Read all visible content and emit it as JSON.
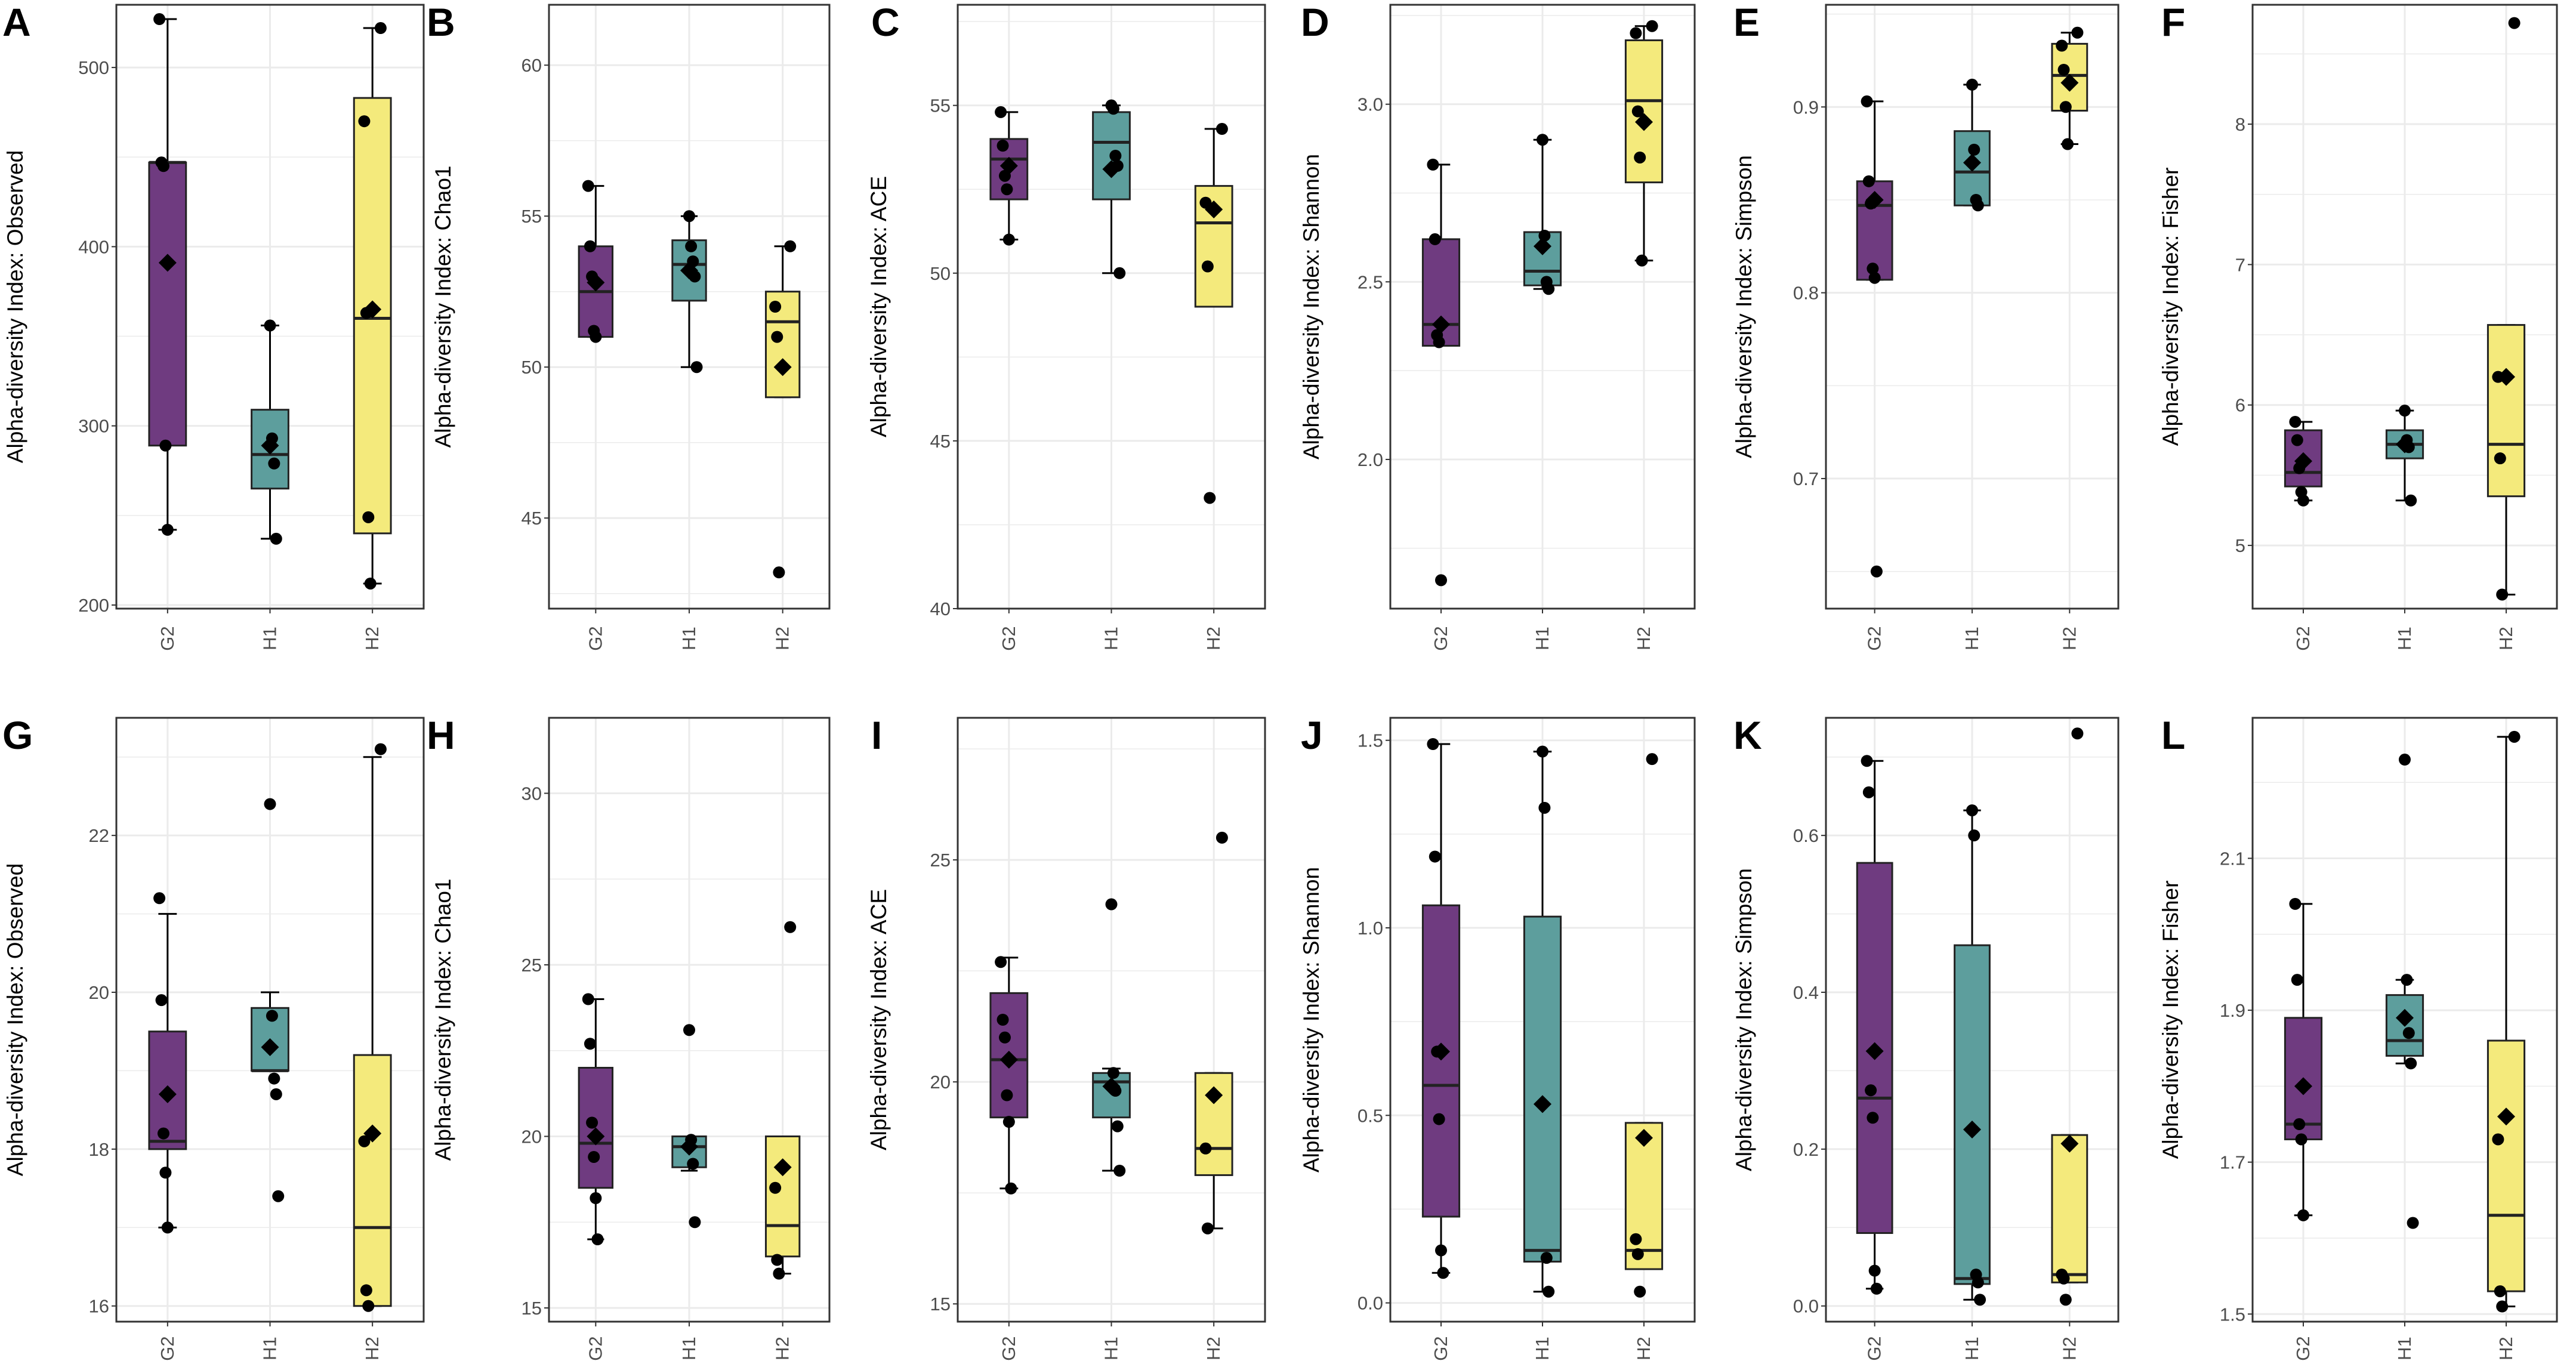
{
  "colors": {
    "G2": "#6f3b80",
    "H1": "#5d9e9d",
    "H2": "#f4ea7c",
    "grid": "#ebebeb",
    "panel_border": "#333333",
    "points": "#000000"
  },
  "chart_data": [
    {
      "panel": "A",
      "type": "box",
      "ylabel": "Alpha-diversity Index: Observed",
      "categories": [
        "G2",
        "H1",
        "H2"
      ],
      "ylim": [
        198,
        535
      ],
      "yticks": [
        200,
        300,
        400,
        500
      ],
      "boxes": [
        {
          "group": "G2",
          "q1": 289,
          "median": 447,
          "q3": 447,
          "whisker_low": 242,
          "whisker_high": 527,
          "mean": 391,
          "points": [
            527,
            447,
            445,
            289,
            242
          ]
        },
        {
          "group": "H1",
          "q1": 265,
          "median": 284,
          "q3": 309,
          "whisker_low": 237,
          "whisker_high": 356,
          "mean": 289,
          "points": [
            356,
            293,
            279,
            237
          ]
        },
        {
          "group": "H2",
          "q1": 240,
          "median": 360,
          "q3": 483,
          "whisker_low": 212,
          "whisker_high": 522,
          "mean": 365,
          "points": [
            522,
            470,
            363,
            249,
            212
          ]
        }
      ]
    },
    {
      "panel": "B",
      "type": "box",
      "ylabel": "Alpha-diversity Index: Chao1",
      "categories": [
        "G2",
        "H1",
        "H2"
      ],
      "ylim": [
        42,
        62
      ],
      "yticks": [
        45,
        50,
        55,
        60
      ],
      "boxes": [
        {
          "group": "G2",
          "q1": 51,
          "median": 52.5,
          "q3": 54,
          "whisker_low": 51,
          "whisker_high": 56,
          "mean": 52.8,
          "points": [
            56,
            54,
            53,
            51.2,
            51
          ]
        },
        {
          "group": "H1",
          "q1": 52.2,
          "median": 53.4,
          "q3": 54.2,
          "whisker_low": 50,
          "whisker_high": 55,
          "mean": 53.2,
          "points": [
            55,
            54,
            53.5,
            53,
            50
          ]
        },
        {
          "group": "H2",
          "q1": 49,
          "median": 51.5,
          "q3": 52.5,
          "whisker_low": 49,
          "whisker_high": 54,
          "mean": 50,
          "points": [
            54,
            52,
            51,
            43.2
          ]
        }
      ]
    },
    {
      "panel": "C",
      "type": "box",
      "ylabel": "Alpha-diversity Index: ACE",
      "categories": [
        "G2",
        "H1",
        "H2"
      ],
      "ylim": [
        40,
        58
      ],
      "yticks": [
        40,
        45,
        50,
        55
      ],
      "boxes": [
        {
          "group": "G2",
          "q1": 52.2,
          "median": 53.4,
          "q3": 54,
          "whisker_low": 51,
          "whisker_high": 54.8,
          "mean": 53.2,
          "points": [
            54.8,
            53.8,
            52.9,
            52.5,
            51
          ]
        },
        {
          "group": "H1",
          "q1": 52.2,
          "median": 53.9,
          "q3": 54.8,
          "whisker_low": 50,
          "whisker_high": 55,
          "mean": 53.1,
          "points": [
            55,
            54.9,
            53.5,
            53.2,
            50
          ]
        },
        {
          "group": "H2",
          "q1": 49,
          "median": 51.5,
          "q3": 52.6,
          "whisker_low": 49,
          "whisker_high": 54.3,
          "mean": 51.9,
          "points": [
            54.3,
            52.1,
            50.2,
            43.3
          ]
        }
      ]
    },
    {
      "panel": "D",
      "type": "box",
      "ylabel": "Alpha-diversity Index: Shannon",
      "categories": [
        "G2",
        "H1",
        "H2"
      ],
      "ylim": [
        1.58,
        3.28
      ],
      "yticks": [
        2.0,
        2.5,
        3.0
      ],
      "ytick_labels": [
        "2.0",
        "2.5",
        "3.0"
      ],
      "boxes": [
        {
          "group": "G2",
          "q1": 2.32,
          "median": 2.38,
          "q3": 2.62,
          "whisker_low": 2.32,
          "whisker_high": 2.83,
          "mean": 2.38,
          "points": [
            2.83,
            2.62,
            2.35,
            2.33,
            1.66
          ]
        },
        {
          "group": "H1",
          "q1": 2.49,
          "median": 2.53,
          "q3": 2.64,
          "whisker_low": 2.48,
          "whisker_high": 2.9,
          "mean": 2.6,
          "points": [
            2.9,
            2.63,
            2.5,
            2.48
          ]
        },
        {
          "group": "H2",
          "q1": 2.78,
          "median": 3.01,
          "q3": 3.18,
          "whisker_low": 2.56,
          "whisker_high": 3.22,
          "mean": 2.95,
          "points": [
            3.22,
            3.2,
            2.98,
            2.85,
            2.56
          ]
        }
      ]
    },
    {
      "panel": "E",
      "type": "box",
      "ylabel": "Alpha-diversity Index: Simpson",
      "categories": [
        "G2",
        "H1",
        "H2"
      ],
      "ylim": [
        0.63,
        0.955
      ],
      "yticks": [
        0.7,
        0.8,
        0.9
      ],
      "ytick_labels": [
        "0.7",
        "0.8",
        "0.9"
      ],
      "boxes": [
        {
          "group": "G2",
          "q1": 0.807,
          "median": 0.847,
          "q3": 0.86,
          "whisker_low": 0.807,
          "whisker_high": 0.903,
          "mean": 0.85,
          "points": [
            0.903,
            0.86,
            0.848,
            0.813,
            0.808,
            0.65
          ]
        },
        {
          "group": "H1",
          "q1": 0.847,
          "median": 0.865,
          "q3": 0.887,
          "whisker_low": 0.847,
          "whisker_high": 0.912,
          "mean": 0.87,
          "points": [
            0.912,
            0.877,
            0.85,
            0.847
          ]
        },
        {
          "group": "H2",
          "q1": 0.898,
          "median": 0.917,
          "q3": 0.934,
          "whisker_low": 0.88,
          "whisker_high": 0.94,
          "mean": 0.913,
          "points": [
            0.94,
            0.933,
            0.92,
            0.9,
            0.88
          ]
        }
      ]
    },
    {
      "panel": "F",
      "type": "box",
      "ylabel": "Alpha-diversity Index: Fisher",
      "categories": [
        "G2",
        "H1",
        "H2"
      ],
      "ylim": [
        4.55,
        8.85
      ],
      "yticks": [
        5,
        6,
        7,
        8
      ],
      "boxes": [
        {
          "group": "G2",
          "q1": 5.42,
          "median": 5.52,
          "q3": 5.82,
          "whisker_low": 5.32,
          "whisker_high": 5.88,
          "mean": 5.6,
          "points": [
            5.88,
            5.75,
            5.55,
            5.38,
            5.32
          ]
        },
        {
          "group": "H1",
          "q1": 5.62,
          "median": 5.72,
          "q3": 5.82,
          "whisker_low": 5.32,
          "whisker_high": 5.96,
          "mean": 5.72,
          "points": [
            5.96,
            5.75,
            5.7,
            5.32
          ]
        },
        {
          "group": "H2",
          "q1": 5.35,
          "median": 5.72,
          "q3": 6.57,
          "whisker_low": 4.65,
          "whisker_high": 6.57,
          "mean": 6.2,
          "points": [
            8.72,
            6.2,
            5.62,
            4.65
          ]
        }
      ]
    },
    {
      "panel": "G",
      "type": "box",
      "ylabel": "Alpha-diversity Index: Observed",
      "categories": [
        "G2",
        "H1",
        "H2"
      ],
      "ylim": [
        15.8,
        23.5
      ],
      "yticks": [
        16,
        18,
        20,
        22
      ],
      "boxes": [
        {
          "group": "G2",
          "q1": 18,
          "median": 18.1,
          "q3": 19.5,
          "whisker_low": 17,
          "whisker_high": 21,
          "mean": 18.7,
          "points": [
            21.2,
            19.9,
            18.2,
            17.7,
            17
          ]
        },
        {
          "group": "H1",
          "q1": 19,
          "median": 19,
          "q3": 19.8,
          "whisker_low": 19,
          "whisker_high": 20,
          "mean": 19.3,
          "points": [
            22.4,
            19.7,
            18.9,
            18.7,
            17.4
          ]
        },
        {
          "group": "H2",
          "q1": 16,
          "median": 17,
          "q3": 19.2,
          "whisker_low": 16,
          "whisker_high": 23,
          "mean": 18.2,
          "points": [
            23.1,
            18.1,
            16.2,
            16
          ]
        }
      ]
    },
    {
      "panel": "H",
      "type": "box",
      "ylabel": "Alpha-diversity Index: Chao1",
      "categories": [
        "G2",
        "H1",
        "H2"
      ],
      "ylim": [
        14.6,
        32.2
      ],
      "yticks": [
        15,
        20,
        25,
        30
      ],
      "boxes": [
        {
          "group": "G2",
          "q1": 18.5,
          "median": 19.8,
          "q3": 22,
          "whisker_low": 17,
          "whisker_high": 24,
          "mean": 20,
          "points": [
            24,
            22.7,
            20.4,
            19.4,
            18.2,
            17
          ]
        },
        {
          "group": "H1",
          "q1": 19.1,
          "median": 19.7,
          "q3": 20,
          "whisker_low": 19,
          "whisker_high": 20,
          "mean": 19.7,
          "points": [
            23.1,
            19.9,
            19.2,
            17.5
          ]
        },
        {
          "group": "H2",
          "q1": 16.5,
          "median": 17.4,
          "q3": 20,
          "whisker_low": 16,
          "whisker_high": 20,
          "mean": 19.1,
          "points": [
            26.1,
            18.5,
            16.4,
            16
          ]
        }
      ]
    },
    {
      "panel": "I",
      "type": "box",
      "ylabel": "Alpha-diversity Index: ACE",
      "categories": [
        "G2",
        "H1",
        "H2"
      ],
      "ylim": [
        14.6,
        28.2
      ],
      "yticks": [
        15,
        20,
        25
      ],
      "boxes": [
        {
          "group": "G2",
          "q1": 19.2,
          "median": 20.5,
          "q3": 22,
          "whisker_low": 17.6,
          "whisker_high": 22.8,
          "mean": 20.5,
          "points": [
            22.7,
            21.4,
            21,
            19.7,
            19.1,
            17.6
          ]
        },
        {
          "group": "H1",
          "q1": 19.2,
          "median": 20,
          "q3": 20.2,
          "whisker_low": 18,
          "whisker_high": 20.3,
          "mean": 19.9,
          "points": [
            24,
            20.2,
            19.8,
            19,
            18
          ]
        },
        {
          "group": "H2",
          "q1": 17.9,
          "median": 18.5,
          "q3": 20.2,
          "whisker_low": 16.7,
          "whisker_high": 20.2,
          "mean": 19.7,
          "points": [
            25.5,
            18.5,
            16.7
          ]
        }
      ]
    },
    {
      "panel": "J",
      "type": "box",
      "ylabel": "Alpha-diversity Index: Shannon",
      "categories": [
        "G2",
        "H1",
        "H2"
      ],
      "ylim": [
        -0.05,
        1.56
      ],
      "yticks": [
        0.0,
        0.5,
        1.0,
        1.5
      ],
      "ytick_labels": [
        "0.0",
        "0.5",
        "1.0",
        "1.5"
      ],
      "boxes": [
        {
          "group": "G2",
          "q1": 0.23,
          "median": 0.58,
          "q3": 1.06,
          "whisker_low": 0.08,
          "whisker_high": 1.49,
          "mean": 0.67,
          "points": [
            1.49,
            1.19,
            0.67,
            0.49,
            0.14,
            0.08
          ]
        },
        {
          "group": "H1",
          "q1": 0.11,
          "median": 0.14,
          "q3": 1.03,
          "whisker_low": 0.03,
          "whisker_high": 1.47,
          "mean": 0.53,
          "points": [
            1.47,
            1.32,
            0.12,
            0.03
          ]
        },
        {
          "group": "H2",
          "q1": 0.09,
          "median": 0.14,
          "q3": 0.48,
          "whisker_low": 0.09,
          "whisker_high": 0.48,
          "mean": 0.44,
          "points": [
            1.45,
            0.17,
            0.13,
            0.03
          ]
        }
      ]
    },
    {
      "panel": "K",
      "type": "box",
      "ylabel": "Alpha-diversity Index: Simpson",
      "categories": [
        "G2",
        "H1",
        "H2"
      ],
      "ylim": [
        -0.02,
        0.75
      ],
      "yticks": [
        0.0,
        0.2,
        0.4,
        0.6
      ],
      "ytick_labels": [
        "0.0",
        "0.2",
        "0.4",
        "0.6"
      ],
      "boxes": [
        {
          "group": "G2",
          "q1": 0.093,
          "median": 0.265,
          "q3": 0.565,
          "whisker_low": 0.022,
          "whisker_high": 0.695,
          "mean": 0.325,
          "points": [
            0.695,
            0.655,
            0.275,
            0.24,
            0.045,
            0.022
          ]
        },
        {
          "group": "H1",
          "q1": 0.028,
          "median": 0.035,
          "q3": 0.46,
          "whisker_low": 0.008,
          "whisker_high": 0.632,
          "mean": 0.225,
          "points": [
            0.632,
            0.6,
            0.04,
            0.03,
            0.008
          ]
        },
        {
          "group": "H2",
          "q1": 0.03,
          "median": 0.04,
          "q3": 0.218,
          "whisker_low": 0.03,
          "whisker_high": 0.218,
          "mean": 0.207,
          "points": [
            0.73,
            0.04,
            0.035,
            0.008
          ]
        }
      ]
    },
    {
      "panel": "L",
      "type": "box",
      "ylabel": "Alpha-diversity Index: Fisher",
      "categories": [
        "G2",
        "H1",
        "H2"
      ],
      "ylim": [
        1.49,
        2.285
      ],
      "yticks": [
        1.5,
        1.7,
        1.9,
        2.1
      ],
      "ytick_labels": [
        "1.5",
        "1.7",
        "1.9",
        "2.1"
      ],
      "boxes": [
        {
          "group": "G2",
          "q1": 1.73,
          "median": 1.75,
          "q3": 1.89,
          "whisker_low": 1.63,
          "whisker_high": 2.04,
          "mean": 1.8,
          "points": [
            2.04,
            1.94,
            1.75,
            1.73,
            1.63
          ]
        },
        {
          "group": "H1",
          "q1": 1.84,
          "median": 1.86,
          "q3": 1.92,
          "whisker_low": 1.83,
          "whisker_high": 1.94,
          "mean": 1.89,
          "points": [
            2.23,
            1.94,
            1.87,
            1.83,
            1.62
          ]
        },
        {
          "group": "H2",
          "q1": 1.53,
          "median": 1.63,
          "q3": 1.86,
          "whisker_low": 1.51,
          "whisker_high": 2.26,
          "mean": 1.76,
          "points": [
            2.26,
            1.73,
            1.53,
            1.51
          ]
        }
      ]
    }
  ]
}
